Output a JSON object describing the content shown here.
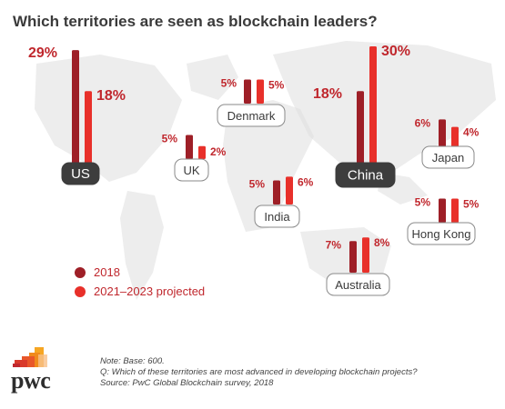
{
  "title": "Which territories are seen as blockchain leaders?",
  "legend": [
    {
      "label": "2018",
      "color": "#9e1f27"
    },
    {
      "label": "2021–2023 projected",
      "color": "#e8302a"
    }
  ],
  "notes": {
    "base": "Note: Base: 600.",
    "question": "Q: Which of these territories are most advanced in developing blockchain projects?",
    "source": "Source: PwC Global Blockchain survey, 2018"
  },
  "logo": {
    "text": "pwc"
  },
  "colors": {
    "bar_2018": "#9e1f27",
    "bar_projected": "#e8302a",
    "label_text": "#c0272d",
    "map": "#dfdfdf",
    "highlight_fill": "#3d3d3d"
  },
  "chart_data": {
    "type": "bar",
    "title": "Which territories are seen as blockchain leaders?",
    "series": [
      {
        "name": "2018",
        "values": [
          29,
          5,
          5,
          18,
          5,
          6,
          5,
          7
        ]
      },
      {
        "name": "2021–2023 projected",
        "values": [
          18,
          2,
          5,
          30,
          6,
          4,
          5,
          8
        ]
      }
    ],
    "categories": [
      "US",
      "UK",
      "Denmark",
      "China",
      "India",
      "Japan",
      "Hong Kong",
      "Australia"
    ],
    "unit": "%",
    "highlighted": [
      "US",
      "China"
    ]
  }
}
